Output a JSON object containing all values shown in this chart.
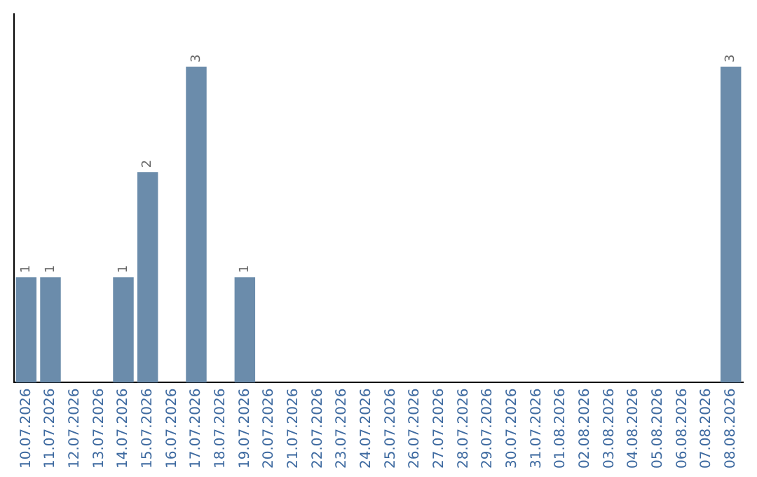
{
  "chart_data": {
    "type": "bar",
    "categories": [
      "10.07.2026",
      "11.07.2026",
      "12.07.2026",
      "13.07.2026",
      "14.07.2026",
      "15.07.2026",
      "16.07.2026",
      "17.07.2026",
      "18.07.2026",
      "19.07.2026",
      "20.07.2026",
      "21.07.2026",
      "22.07.2026",
      "23.07.2026",
      "24.07.2026",
      "25.07.2026",
      "26.07.2026",
      "27.07.2026",
      "28.07.2026",
      "29.07.2026",
      "30.07.2026",
      "31.07.2026",
      "01.08.2026",
      "02.08.2026",
      "03.08.2026",
      "04.08.2026",
      "05.08.2026",
      "06.08.2026",
      "07.08.2026",
      "08.08.2026"
    ],
    "values": [
      1,
      1,
      0,
      0,
      1,
      2,
      0,
      3,
      0,
      1,
      0,
      0,
      0,
      0,
      0,
      0,
      0,
      0,
      0,
      0,
      0,
      0,
      0,
      0,
      0,
      0,
      0,
      0,
      0,
      3
    ],
    "color": "#6b8cab",
    "value_labels": [
      "1",
      "1",
      null,
      null,
      "1",
      "2",
      null,
      "3",
      null,
      "1",
      null,
      null,
      null,
      null,
      null,
      null,
      null,
      null,
      null,
      null,
      null,
      null,
      null,
      null,
      null,
      null,
      null,
      null,
      null,
      "3"
    ],
    "tick_labels": "x",
    "grid": false,
    "legend": false
  }
}
